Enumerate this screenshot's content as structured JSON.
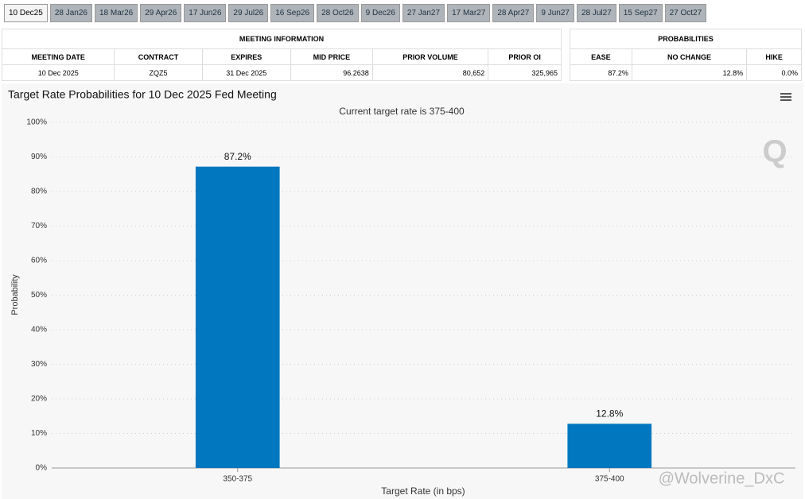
{
  "tabs": [
    "10 Dec25",
    "28 Jan26",
    "18 Mar26",
    "29 Apr26",
    "17 Jun26",
    "29 Jul26",
    "16 Sep26",
    "28 Oct26",
    "9 Dec26",
    "27 Jan27",
    "17 Mar27",
    "28 Apr27",
    "9 Jun27",
    "28 Jul27",
    "15 Sep27",
    "27 Oct27"
  ],
  "meeting_info": {
    "title": "MEETING INFORMATION",
    "headers": [
      "MEETING DATE",
      "CONTRACT",
      "EXPIRES",
      "MID PRICE",
      "PRIOR VOLUME",
      "PRIOR OI"
    ],
    "row": [
      "10 Dec 2025",
      "ZQZ5",
      "31 Dec 2025",
      "96.2638",
      "80,652",
      "325,965"
    ]
  },
  "probabilities": {
    "title": "PROBABILITIES",
    "headers": [
      "EASE",
      "NO CHANGE",
      "HIKE"
    ],
    "row": [
      "87.2%",
      "12.8%",
      "0.0%"
    ]
  },
  "chart_data": {
    "type": "bar",
    "title": "Target Rate Probabilities for 10 Dec 2025 Fed Meeting",
    "subtitle": "Current target rate is 375-400",
    "x_label": "Target Rate (in bps)",
    "y_label": "Probability",
    "categories": [
      "350-375",
      "375-400"
    ],
    "values": [
      87.2,
      12.8
    ],
    "value_labels": [
      "87.2%",
      "12.8%"
    ],
    "color": "#0077be",
    "ylim": [
      0,
      100
    ],
    "yticks": [
      {
        "value": 0,
        "label": "0%"
      },
      {
        "value": 10,
        "label": "10%"
      },
      {
        "value": 20,
        "label": "20%"
      },
      {
        "value": 30,
        "label": "30%"
      },
      {
        "value": 40,
        "label": "40%"
      },
      {
        "value": 50,
        "label": "50%"
      },
      {
        "value": 60,
        "label": "60%"
      },
      {
        "value": 70,
        "label": "70%"
      },
      {
        "value": 80,
        "label": "80%"
      },
      {
        "value": 90,
        "label": "90%"
      },
      {
        "value": 100,
        "label": "100%"
      }
    ],
    "grid": true,
    "logo": "Q",
    "watermark": "@Wolverine_DxC"
  }
}
